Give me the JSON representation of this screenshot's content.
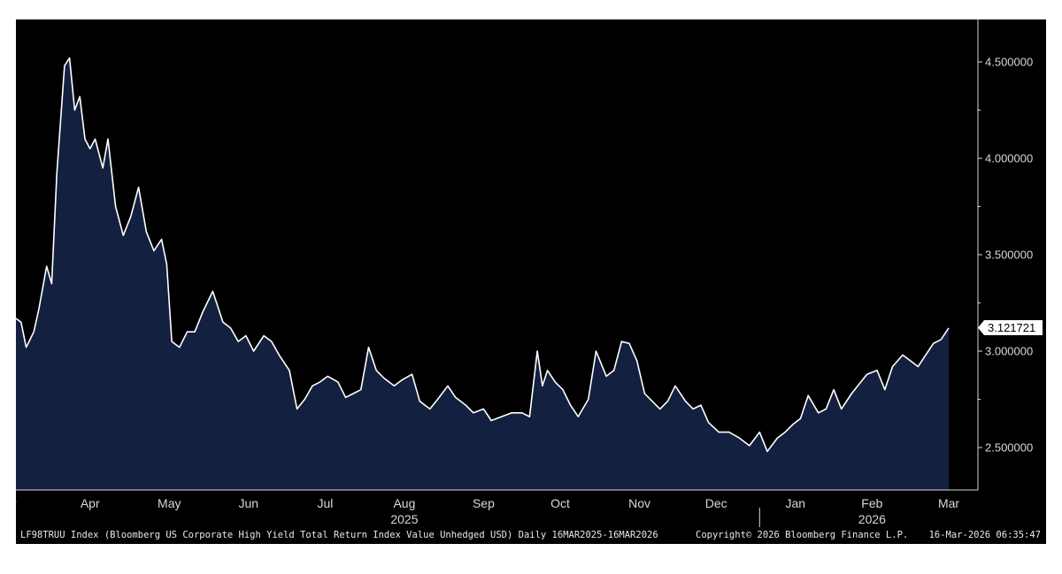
{
  "colors": {
    "background": "#000000",
    "area_fill": "#132040",
    "line": "#ffffff",
    "axis": "#d8d8d8",
    "label_box": "#ffffff",
    "label_text": "#000000"
  },
  "footer": {
    "description": "LF98TRUU Index (Bloomberg US Corporate High Yield Total Return Index Value Unhedged USD) Daily 16MAR2025-16MAR2026",
    "copyright": "Copyright© 2026 Bloomberg Finance L.P.",
    "timestamp": "16-Mar-2026 06:35:47"
  },
  "chart_data": {
    "type": "area",
    "title": "",
    "xlabel": "",
    "ylabel": "",
    "grid": false,
    "y_axis_position": "right",
    "ylim": [
      2.28,
      4.72
    ],
    "y_ticks": [
      "4.500000",
      "4.000000",
      "3.500000",
      "3.000000",
      "2.500000"
    ],
    "y_tick_values": [
      4.5,
      4.0,
      3.5,
      3.0,
      2.5
    ],
    "last_value_label": "3.121721",
    "last_value": 3.121721,
    "x_range": [
      "2025-03-16",
      "2026-03-16"
    ],
    "x_month_labels": [
      {
        "label": "Mar",
        "date": "2025-03-12"
      },
      {
        "label": "Apr",
        "date": "2025-04-14"
      },
      {
        "label": "May",
        "date": "2025-05-15"
      },
      {
        "label": "Jun",
        "date": "2025-06-15"
      },
      {
        "label": "Jul",
        "date": "2025-07-15"
      },
      {
        "label": "Aug",
        "date": "2025-08-15"
      },
      {
        "label": "Sep",
        "date": "2025-09-15"
      },
      {
        "label": "Oct",
        "date": "2025-10-15"
      },
      {
        "label": "Nov",
        "date": "2025-11-15"
      },
      {
        "label": "Dec",
        "date": "2025-12-15"
      },
      {
        "label": "Jan",
        "date": "2026-01-15"
      },
      {
        "label": "Feb",
        "date": "2026-02-14"
      },
      {
        "label": "Mar",
        "date": "2026-03-16"
      }
    ],
    "x_year_labels": [
      {
        "label": "2025",
        "date": "2025-08-15"
      },
      {
        "label": "2026",
        "date": "2026-02-14"
      }
    ],
    "year_divider_date": "2026-01-01",
    "series": [
      {
        "x": [
          "2025-03-16",
          "2025-03-18",
          "2025-03-20",
          "2025-03-23",
          "2025-03-25",
          "2025-03-28",
          "2025-03-30",
          "2025-04-01",
          "2025-04-04",
          "2025-04-06",
          "2025-04-08",
          "2025-04-10",
          "2025-04-12",
          "2025-04-14",
          "2025-04-16",
          "2025-04-19",
          "2025-04-21",
          "2025-04-24",
          "2025-04-27",
          "2025-04-30",
          "2025-05-03",
          "2025-05-06",
          "2025-05-09",
          "2025-05-12",
          "2025-05-14",
          "2025-05-16",
          "2025-05-19",
          "2025-05-22",
          "2025-05-25",
          "2025-05-28",
          "2025-06-01",
          "2025-06-05",
          "2025-06-08",
          "2025-06-11",
          "2025-06-14",
          "2025-06-17",
          "2025-06-21",
          "2025-06-24",
          "2025-06-27",
          "2025-07-01",
          "2025-07-04",
          "2025-07-07",
          "2025-07-10",
          "2025-07-13",
          "2025-07-16",
          "2025-07-20",
          "2025-07-23",
          "2025-07-26",
          "2025-07-29",
          "2025-08-01",
          "2025-08-04",
          "2025-08-07",
          "2025-08-11",
          "2025-08-14",
          "2025-08-18",
          "2025-08-21",
          "2025-08-25",
          "2025-08-28",
          "2025-09-01",
          "2025-09-04",
          "2025-09-08",
          "2025-09-11",
          "2025-09-15",
          "2025-09-18",
          "2025-09-22",
          "2025-09-26",
          "2025-09-30",
          "2025-10-03",
          "2025-10-06",
          "2025-10-08",
          "2025-10-10",
          "2025-10-13",
          "2025-10-16",
          "2025-10-19",
          "2025-10-22",
          "2025-10-26",
          "2025-10-29",
          "2025-11-02",
          "2025-11-05",
          "2025-11-08",
          "2025-11-11",
          "2025-11-14",
          "2025-11-17",
          "2025-11-20",
          "2025-11-23",
          "2025-11-26",
          "2025-11-29",
          "2025-12-03",
          "2025-12-06",
          "2025-12-09",
          "2025-12-12",
          "2025-12-16",
          "2025-12-20",
          "2025-12-24",
          "2025-12-28",
          "2026-01-01",
          "2026-01-04",
          "2026-01-08",
          "2026-01-11",
          "2026-01-14",
          "2026-01-17",
          "2026-01-20",
          "2026-01-24",
          "2026-01-27",
          "2026-01-30",
          "2026-02-02",
          "2026-02-06",
          "2026-02-09",
          "2026-02-12",
          "2026-02-16",
          "2026-02-19",
          "2026-02-22",
          "2026-02-26",
          "2026-03-01",
          "2026-03-04",
          "2026-03-07",
          "2026-03-10",
          "2026-03-13",
          "2026-03-16"
        ],
        "values": [
          3.17,
          3.15,
          3.02,
          3.1,
          3.22,
          3.44,
          3.35,
          3.92,
          4.48,
          4.52,
          4.25,
          4.32,
          4.1,
          4.05,
          4.1,
          3.95,
          4.1,
          3.75,
          3.6,
          3.7,
          3.85,
          3.62,
          3.52,
          3.58,
          3.45,
          3.05,
          3.02,
          3.1,
          3.1,
          3.2,
          3.31,
          3.15,
          3.12,
          3.05,
          3.08,
          3.0,
          3.08,
          3.05,
          2.98,
          2.9,
          2.7,
          2.75,
          2.82,
          2.84,
          2.87,
          2.84,
          2.76,
          2.78,
          2.8,
          3.02,
          2.9,
          2.86,
          2.82,
          2.85,
          2.88,
          2.74,
          2.7,
          2.75,
          2.82,
          2.76,
          2.72,
          2.68,
          2.7,
          2.64,
          2.66,
          2.68,
          2.68,
          2.66,
          3.0,
          2.82,
          2.9,
          2.84,
          2.8,
          2.72,
          2.66,
          2.75,
          3.0,
          2.87,
          2.9,
          3.05,
          3.04,
          2.95,
          2.78,
          2.74,
          2.7,
          2.74,
          2.82,
          2.74,
          2.7,
          2.72,
          2.63,
          2.58,
          2.58,
          2.55,
          2.51,
          2.58,
          2.48,
          2.55,
          2.58,
          2.62,
          2.65,
          2.77,
          2.68,
          2.7,
          2.8,
          2.7,
          2.78,
          2.83,
          2.88,
          2.9,
          2.8,
          2.92,
          2.98,
          2.95,
          2.92,
          2.98,
          3.04,
          3.06,
          3.12
        ]
      }
    ]
  }
}
